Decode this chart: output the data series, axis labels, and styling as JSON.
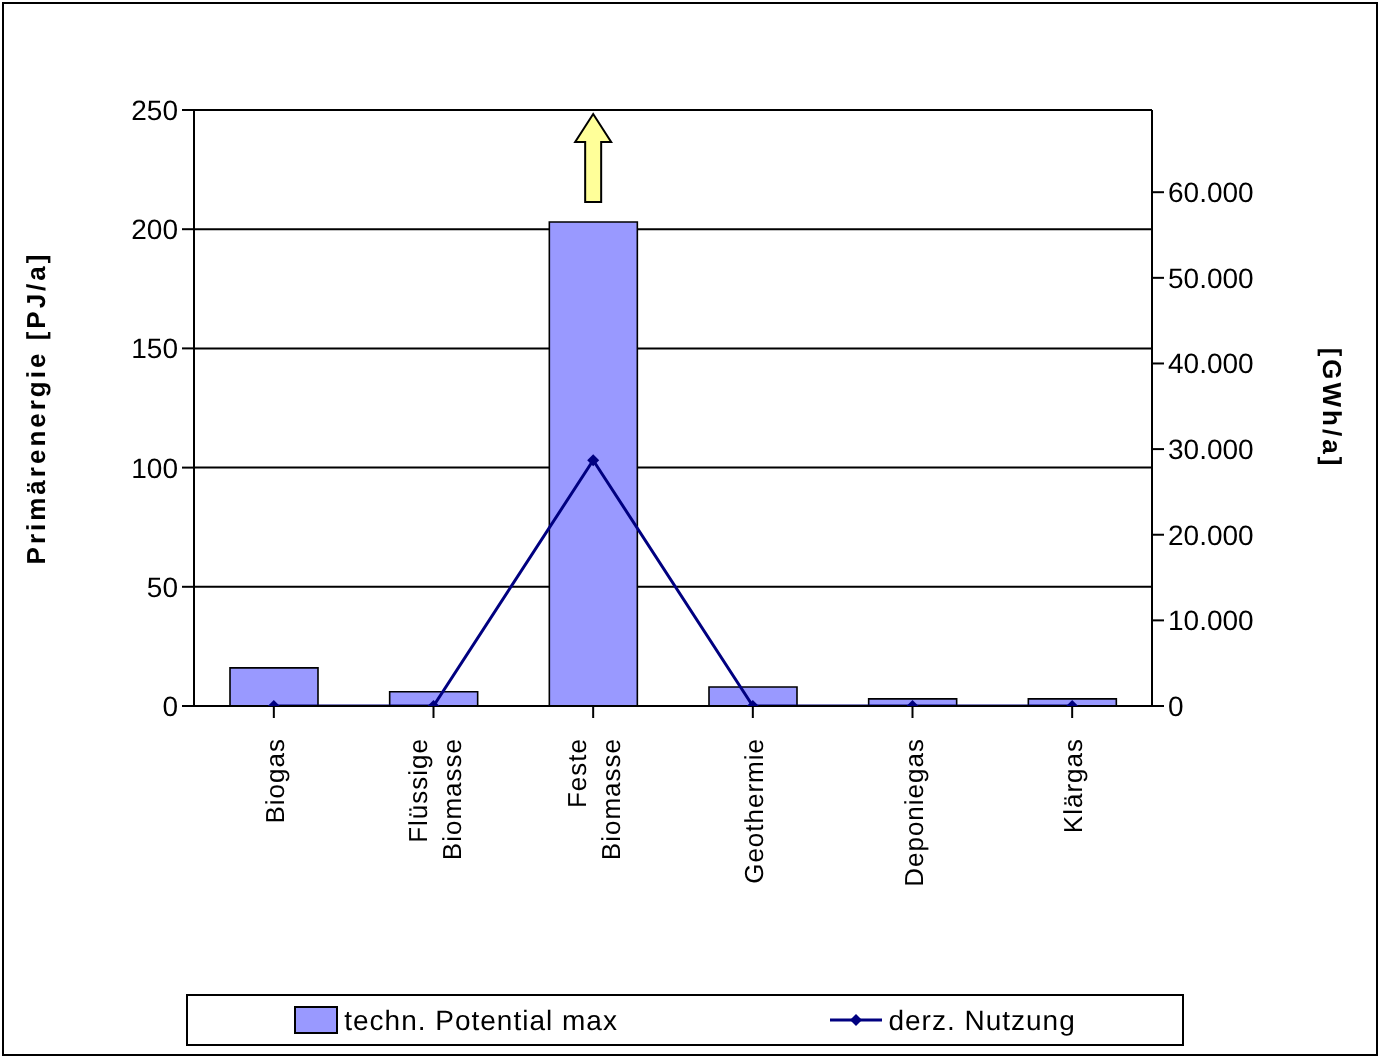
{
  "chart_data": {
    "type": "bar",
    "categories": [
      "Biogas",
      "Flüssige Biomasse",
      "Feste Biomasse",
      "Geothermie",
      "Deponiegas",
      "Klärgas"
    ],
    "series": [
      {
        "name": "techn. Potential max",
        "color": "#9999ff",
        "values": [
          16,
          6,
          203,
          8,
          3,
          3
        ]
      },
      {
        "name": "derz. Nutzung",
        "type": "line",
        "axis": "y2",
        "color": "#000080",
        "values": [
          0,
          0,
          28700,
          0,
          0,
          0
        ]
      }
    ],
    "ylabel": "Primärenergie [PJ/a]",
    "y2label": "[GWh/a]",
    "ylim": [
      0,
      250
    ],
    "yticks": [
      0,
      50,
      100,
      150,
      200,
      250
    ],
    "y2lim": [
      0,
      69600
    ],
    "y2ticks": [
      {
        "value": 0,
        "label": "0"
      },
      {
        "value": 10000,
        "label": "10.000"
      },
      {
        "value": 20000,
        "label": "20.000"
      },
      {
        "value": 30000,
        "label": "30.000"
      },
      {
        "value": 40000,
        "label": "40.000"
      },
      {
        "value": 50000,
        "label": "50.000"
      },
      {
        "value": 60000,
        "label": "60.000"
      }
    ],
    "grid": "y",
    "legend": "bottom",
    "marker": "diamond",
    "line_style": "solid"
  }
}
